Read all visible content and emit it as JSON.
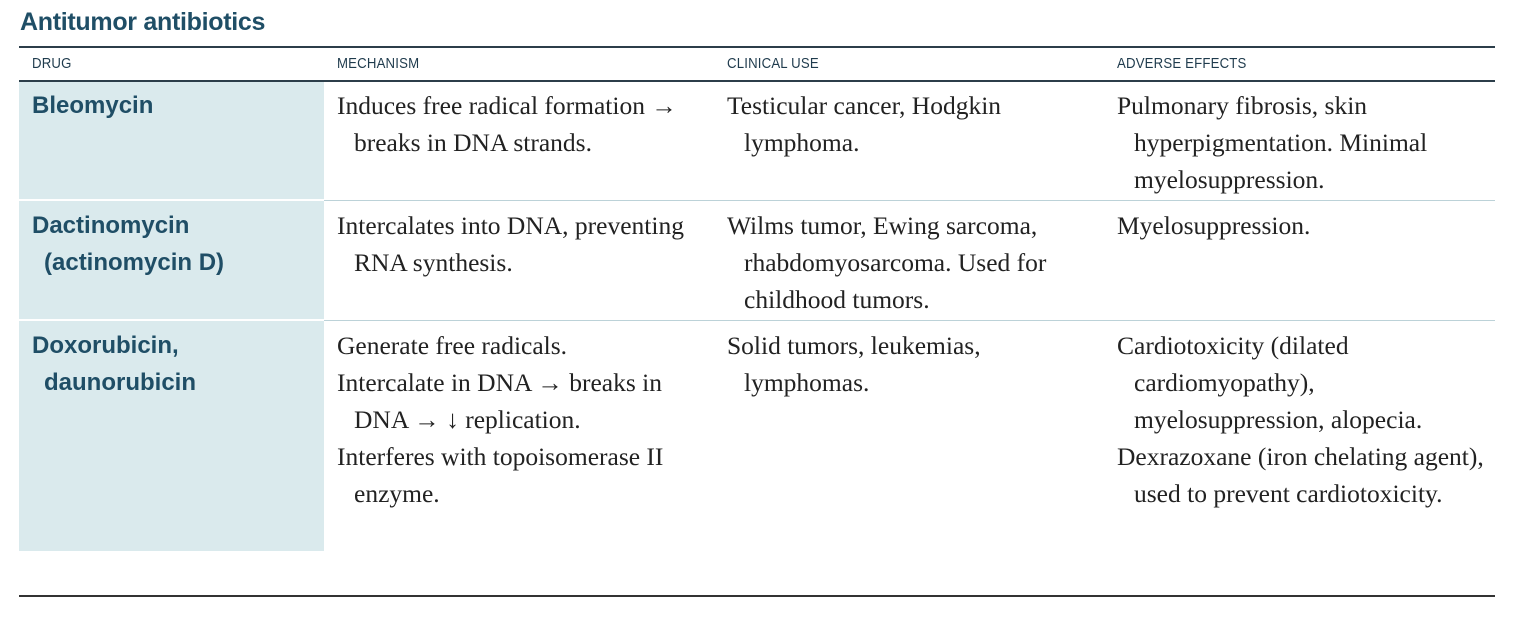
{
  "section_title": "Antitumor antibiotics",
  "table": {
    "headers": {
      "drug": "DRUG",
      "mechanism": "MECHANISM",
      "clinical_use": "CLINICAL USE",
      "adverse_effects": "ADVERSE EFFECTS"
    },
    "rows": [
      {
        "drug_lines": [
          "Bleomycin"
        ],
        "mechanism": [
          "Induces free radical formation → breaks in DNA strands."
        ],
        "clinical_use": [
          "Testicular cancer, Hodgkin lymphoma."
        ],
        "adverse_effects": [
          "Pulmonary fibrosis, skin hyperpigmentation. Minimal myelosuppression."
        ]
      },
      {
        "drug_lines": [
          "Dactinomycin",
          "(actinomycin D)"
        ],
        "mechanism": [
          "Intercalates into DNA, preventing RNA synthesis."
        ],
        "clinical_use": [
          "Wilms tumor, Ewing sarcoma, rhabdomyosarcoma. Used for childhood tumors."
        ],
        "adverse_effects": [
          "Myelosuppression."
        ]
      },
      {
        "drug_lines": [
          "Doxorubicin,",
          "daunorubicin"
        ],
        "mechanism": [
          "Generate free radicals.",
          "Intercalate in DNA → breaks in DNA → ↓ replication.",
          "Interferes with topoisomerase II enzyme."
        ],
        "clinical_use": [
          "Solid tumors, leukemias, lymphomas."
        ],
        "adverse_effects": [
          "Cardiotoxicity (dilated cardiomyopathy), myelosuppression, alopecia.",
          "Dexrazoxane (iron chelating agent), used to prevent cardiotoxicity."
        ]
      }
    ]
  }
}
